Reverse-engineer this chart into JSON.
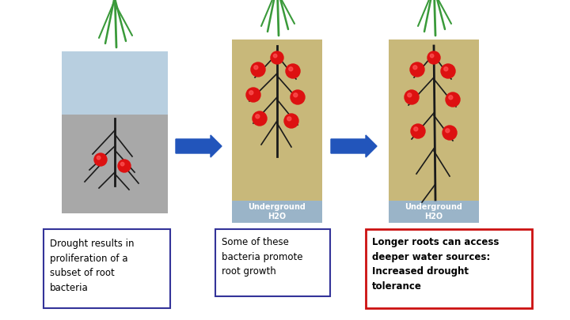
{
  "bg_color": "#ffffff",
  "soil_color_1": "#a8a8a8",
  "water_color_1": "#b8cfe0",
  "soil_color_2": "#c8b87a",
  "water_color_2": "#9ab4c8",
  "root_color": "#1a1a1a",
  "stem_color": "#3a9a3a",
  "bacteria_color": "#dd1111",
  "arrow_color": "#2255bb",
  "box1_border": "#333399",
  "box2_border": "#333399",
  "box3_border": "#cc1111",
  "box1_text": "Drought results in\nproliferation of a\nsubset of root\nbacteria",
  "box2_text": "Some of these\nbacteria promote\nroot growth",
  "box3_text": "Longer roots can access\ndeeper water sources:\nIncreased drought\ntolerance",
  "underground_label": "Underground\nH2O"
}
